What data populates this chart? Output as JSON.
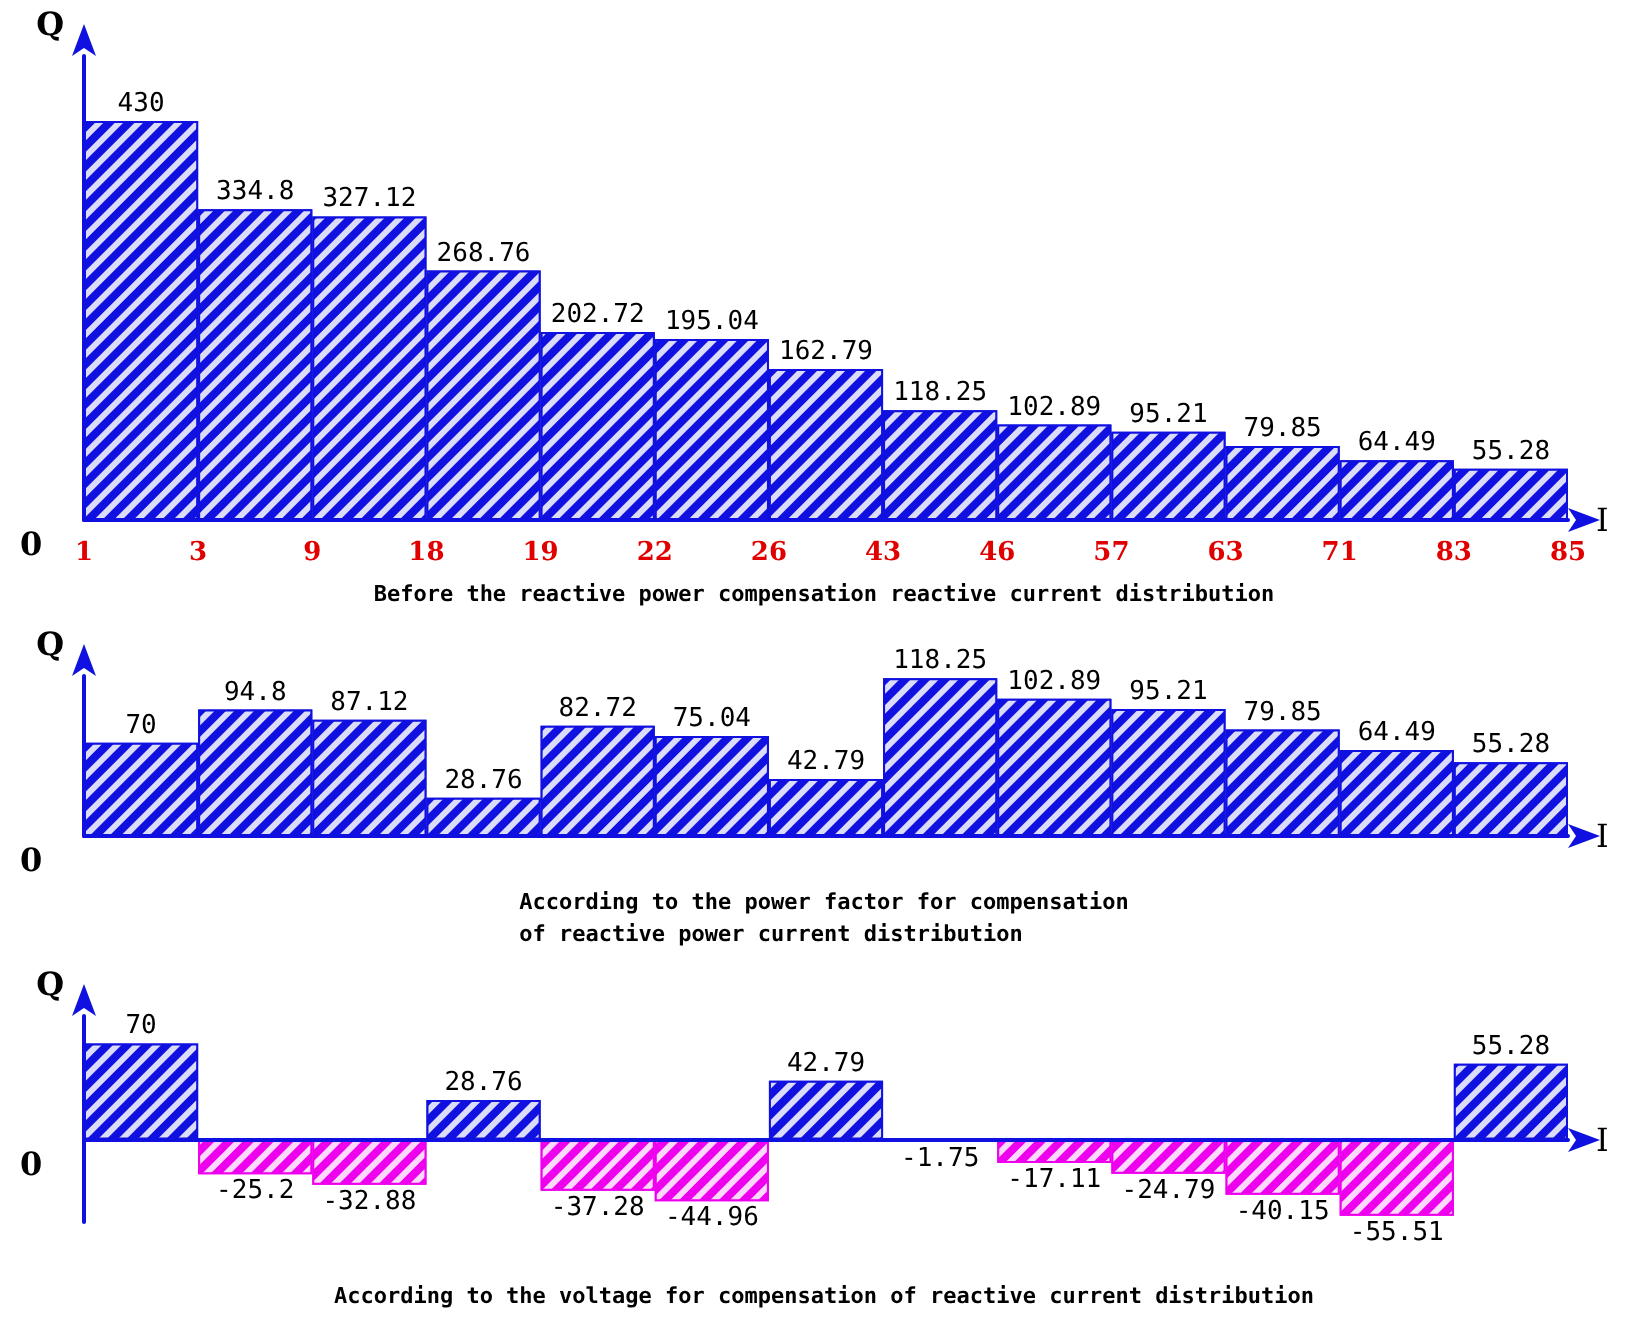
{
  "chart_data": [
    {
      "type": "bar",
      "title": "Before the reactive power compensation reactive current distribution",
      "xlabel": "I",
      "ylabel": "Q",
      "categories": [
        null,
        null,
        null,
        null,
        null,
        null,
        null,
        null,
        null,
        null,
        null,
        null,
        null
      ],
      "values": [
        430,
        334.8,
        327.12,
        268.76,
        202.72,
        195.04,
        162.79,
        118.25,
        102.89,
        95.21,
        79.85,
        64.49,
        55.28
      ],
      "color": "#1010e0",
      "data_labels": true,
      "annotations": [
        "0",
        "1",
        "3",
        "9",
        "18",
        "19",
        "22",
        "26",
        "43",
        "46",
        "57",
        "63",
        "71",
        "83",
        "85"
      ]
    },
    {
      "type": "bar",
      "title": "According to the power factor for compensation\nof reactive power current distribution",
      "xlabel": "I",
      "ylabel": "Q",
      "categories": [
        null,
        null,
        null,
        null,
        null,
        null,
        null,
        null,
        null,
        null,
        null,
        null,
        null
      ],
      "values": [
        70,
        94.8,
        87.12,
        28.76,
        82.72,
        75.04,
        42.79,
        118.25,
        102.89,
        95.21,
        79.85,
        64.49,
        55.28
      ],
      "color": "#1010e0",
      "data_labels": true,
      "annotations": [
        "0"
      ]
    },
    {
      "type": "bar",
      "title": "According to the voltage for compensation of reactive current distribution",
      "xlabel": "I",
      "ylabel": "Q",
      "categories": [
        null,
        null,
        null,
        null,
        null,
        null,
        null,
        null,
        null,
        null,
        null,
        null,
        null
      ],
      "values": [
        70,
        -25.2,
        -32.88,
        28.76,
        -37.28,
        -44.96,
        42.79,
        -1.75,
        -17.11,
        -24.79,
        -40.15,
        -55.51,
        55.28
      ],
      "colors": [
        "#1010e0",
        "#ee00ee",
        "#ee00ee",
        "#1010e0",
        "#ee00ee",
        "#ee00ee",
        "#1010e0",
        "#ee00ee",
        "#ee00ee",
        "#ee00ee",
        "#ee00ee",
        "#ee00ee",
        "#1010e0"
      ],
      "data_labels": true,
      "ref_lines": [
        {
          "axis": "y",
          "value": 0,
          "color": "#1010e0",
          "line_style": "solid"
        }
      ],
      "annotations": [
        "0"
      ]
    }
  ]
}
